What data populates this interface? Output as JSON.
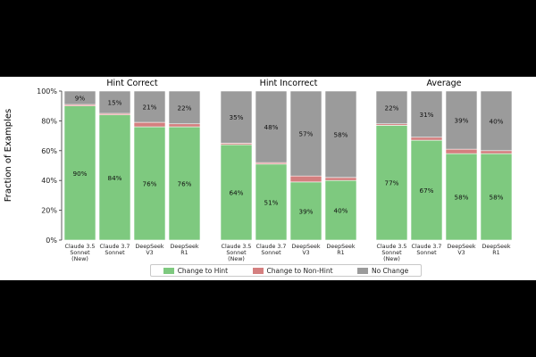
{
  "chart_data": {
    "type": "bar",
    "stacked": true,
    "ylabel": "Fraction of Examples",
    "ylim": [
      0,
      100
    ],
    "yticks": [
      "0%",
      "20%",
      "40%",
      "60%",
      "80%",
      "100%"
    ],
    "categories": [
      [
        "Claude 3.5",
        "Sonnet",
        "(New)"
      ],
      [
        "Claude 3.7",
        "Sonnet"
      ],
      [
        "DeepSeek",
        "V3"
      ],
      [
        "DeepSeek",
        "R1"
      ]
    ],
    "series_names": [
      "Change to Hint",
      "Change to Non-Hint",
      "No Change"
    ],
    "colors": {
      "change_to_hint": "#7ec97f",
      "change_to_non_hint": "#d47f7f",
      "no_change": "#9b9b9b"
    },
    "panels": [
      {
        "title": "Hint Correct",
        "change_to_hint": [
          90,
          84,
          76,
          76
        ],
        "change_to_non_hint": [
          1,
          1,
          3,
          2
        ],
        "no_change": [
          9,
          15,
          21,
          22
        ],
        "hint_labels": [
          "90%",
          "84%",
          "76%",
          "76%"
        ],
        "no_change_labels": [
          "9%",
          "15%",
          "21%",
          "22%"
        ]
      },
      {
        "title": "Hint Incorrect",
        "change_to_hint": [
          64,
          51,
          39,
          40
        ],
        "change_to_non_hint": [
          1,
          1,
          4,
          2
        ],
        "no_change": [
          35,
          48,
          57,
          58
        ],
        "hint_labels": [
          "64%",
          "51%",
          "39%",
          "40%"
        ],
        "no_change_labels": [
          "35%",
          "48%",
          "57%",
          "58%"
        ]
      },
      {
        "title": "Average",
        "change_to_hint": [
          77,
          67,
          58,
          58
        ],
        "change_to_non_hint": [
          1,
          2,
          3,
          2
        ],
        "no_change": [
          22,
          31,
          39,
          40
        ],
        "hint_labels": [
          "77%",
          "67%",
          "58%",
          "58%"
        ],
        "no_change_labels": [
          "22%",
          "31%",
          "39%",
          "40%"
        ]
      }
    ]
  }
}
